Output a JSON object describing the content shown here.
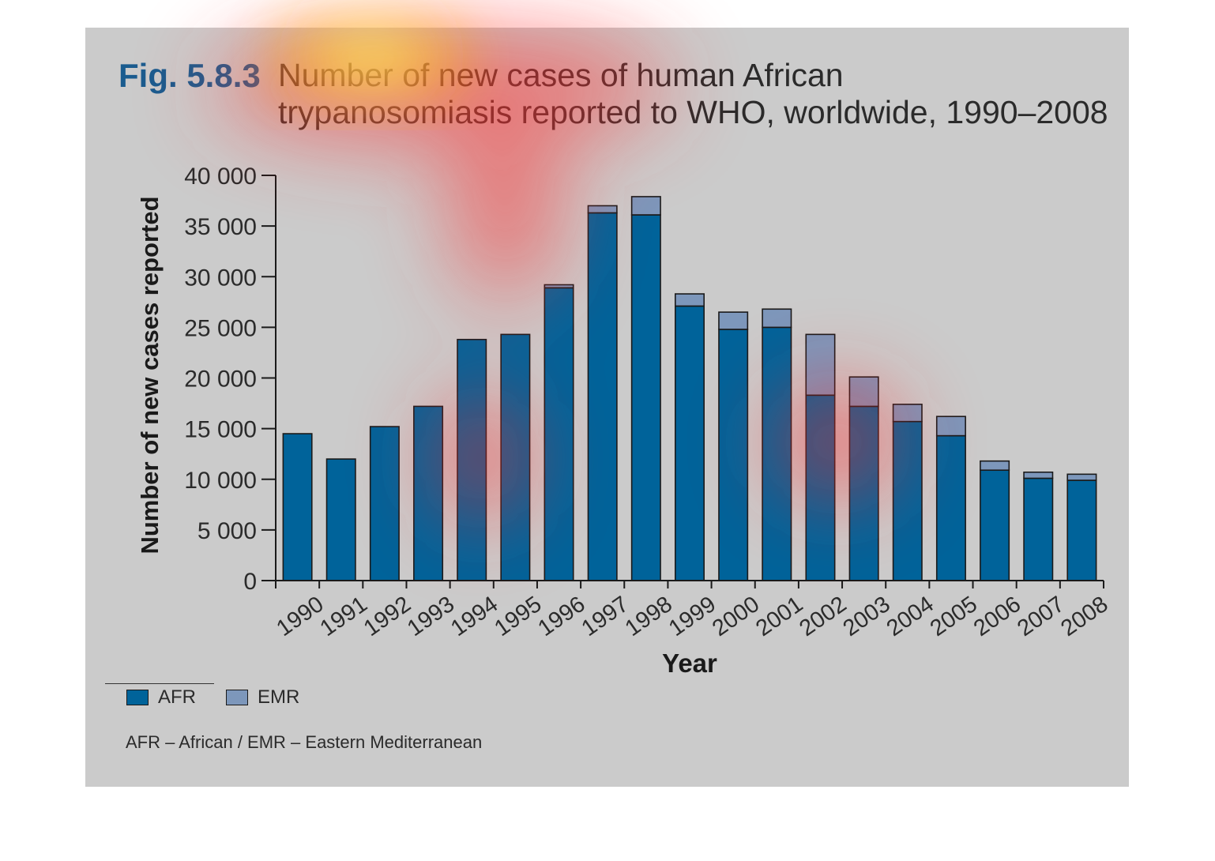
{
  "figure": {
    "number": "Fig. 5.8.3",
    "title_line1": "Number of new cases of human African",
    "title_line2": "trypanosomiasis reported to WHO, worldwide, 1990–2008"
  },
  "chart_data": {
    "type": "bar",
    "stacked": true,
    "title": "Number of new cases of human African trypanosomiasis reported to WHO, worldwide, 1990–2008",
    "xlabel": "Year",
    "ylabel": "Number of new cases reported",
    "ylim": [
      0,
      40000
    ],
    "yticks": [
      0,
      5000,
      10000,
      15000,
      20000,
      25000,
      30000,
      35000,
      40000
    ],
    "ytick_labels": [
      "0",
      "5 000",
      "10 000",
      "15 000",
      "20 000",
      "25 000",
      "30 000",
      "35 000",
      "40 000"
    ],
    "categories": [
      "1990",
      "1991",
      "1992",
      "1993",
      "1994",
      "1995",
      "1996",
      "1997",
      "1998",
      "1999",
      "2000",
      "2001",
      "2002",
      "2003",
      "2004",
      "2005",
      "2006",
      "2007",
      "2008"
    ],
    "series": [
      {
        "name": "AFR",
        "color": "#00639a",
        "values": [
          14500,
          12000,
          15200,
          17200,
          23800,
          24300,
          28900,
          36300,
          36100,
          27100,
          24800,
          25000,
          18300,
          17200,
          15700,
          14300,
          10900,
          10100,
          9900
        ]
      },
      {
        "name": "EMR",
        "color": "#7d97bb",
        "values": [
          0,
          0,
          0,
          0,
          0,
          0,
          300,
          700,
          1800,
          1200,
          1700,
          1800,
          6000,
          2900,
          1700,
          1900,
          900,
          600,
          600
        ]
      }
    ],
    "legend_position": "bottom-left",
    "grid": false
  },
  "legend": {
    "items": [
      {
        "label": "AFR",
        "color": "#00639a"
      },
      {
        "label": "EMR",
        "color": "#7d97bb"
      }
    ]
  },
  "footnote": "AFR – African / EMR – Eastern Mediterranean"
}
